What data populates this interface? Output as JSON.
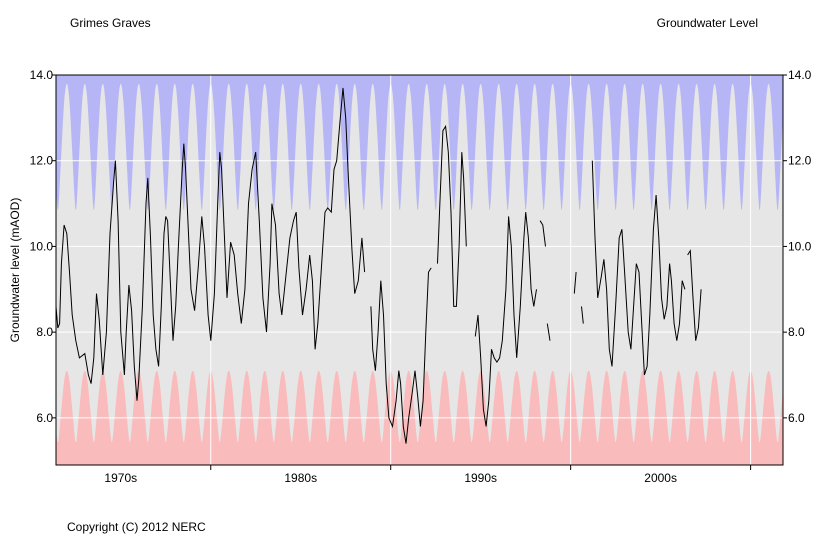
{
  "header": {
    "site_name": "Grimes Graves",
    "chart_title": "Groundwater Level"
  },
  "footer": {
    "copyright": "Copyright (C) 2012 NERC"
  },
  "colors": {
    "plot_background": "#e6e6e6",
    "high_band": "#b3b3f7",
    "low_band": "#fab8b8",
    "gridline": "#ffffff",
    "series_line": "#000000"
  },
  "chart_data": {
    "type": "line",
    "title": "Groundwater Level",
    "xlabel": "",
    "ylabel": "Groundwater level (mAOD)",
    "xlim": [
      1966.4,
      2006.8
    ],
    "ylim": [
      4.9,
      14.0
    ],
    "yticks": [
      6.0,
      8.0,
      10.0,
      12.0,
      14.0
    ],
    "ytick_labels": [
      "6.0",
      "8.0",
      "10.0",
      "12.0",
      "14.0"
    ],
    "xtick_labels": [
      {
        "label": "1970s",
        "center": 1970.0
      },
      {
        "label": "1980s",
        "center": 1980.0
      },
      {
        "label": "1990s",
        "center": 1990.0
      },
      {
        "label": "2000s",
        "center": 2000.0
      }
    ],
    "x_minor_ticks": [
      1975.0,
      1985.0,
      1995.0,
      2005.0
    ],
    "x_major_gridlines": [
      1975.0,
      1985.0,
      1995.0,
      2005.0
    ],
    "seasonal_bands": {
      "high": {
        "base": 14.0,
        "min_level": 10.8,
        "max_level": 13.8
      },
      "low": {
        "base": 4.9,
        "min_level": 5.4,
        "max_level": 7.1
      }
    },
    "series": [
      {
        "name": "Groundwater level",
        "segments": [
          [
            [
              1966.4,
              8.6
            ],
            [
              1966.5,
              8.1
            ],
            [
              1966.6,
              8.2
            ],
            [
              1966.7,
              9.6
            ],
            [
              1966.85,
              10.5
            ],
            [
              1967.0,
              10.3
            ],
            [
              1967.15,
              9.4
            ],
            [
              1967.3,
              8.4
            ],
            [
              1967.5,
              7.8
            ],
            [
              1967.7,
              7.4
            ],
            [
              1968.0,
              7.5
            ],
            [
              1968.2,
              7.0
            ],
            [
              1968.35,
              6.8
            ],
            [
              1968.5,
              7.4
            ],
            [
              1968.65,
              8.9
            ],
            [
              1968.8,
              8.3
            ],
            [
              1969.0,
              7.0
            ],
            [
              1969.2,
              8.0
            ],
            [
              1969.4,
              10.3
            ],
            [
              1969.6,
              11.5
            ],
            [
              1969.7,
              12.0
            ],
            [
              1969.85,
              10.6
            ],
            [
              1970.0,
              8.0
            ],
            [
              1970.2,
              7.0
            ],
            [
              1970.3,
              8.0
            ],
            [
              1970.45,
              9.1
            ],
            [
              1970.6,
              8.5
            ],
            [
              1970.75,
              7.2
            ],
            [
              1970.9,
              6.4
            ],
            [
              1971.0,
              6.9
            ],
            [
              1971.2,
              8.6
            ],
            [
              1971.4,
              11.0
            ],
            [
              1971.5,
              11.6
            ],
            [
              1971.65,
              10.2
            ],
            [
              1971.8,
              8.4
            ],
            [
              1971.95,
              7.6
            ],
            [
              1972.1,
              7.2
            ],
            [
              1972.25,
              8.6
            ],
            [
              1972.4,
              10.3
            ],
            [
              1972.5,
              10.7
            ],
            [
              1972.6,
              10.6
            ],
            [
              1972.75,
              9.2
            ],
            [
              1972.9,
              7.8
            ],
            [
              1973.05,
              8.6
            ],
            [
              1973.2,
              10.0
            ],
            [
              1973.4,
              11.7
            ],
            [
              1973.5,
              12.4
            ],
            [
              1973.6,
              11.8
            ],
            [
              1973.75,
              10.4
            ],
            [
              1973.9,
              9.0
            ],
            [
              1974.1,
              8.5
            ],
            [
              1974.3,
              9.5
            ],
            [
              1974.5,
              10.7
            ],
            [
              1974.65,
              10.0
            ],
            [
              1974.85,
              8.4
            ],
            [
              1975.0,
              7.8
            ],
            [
              1975.2,
              8.9
            ],
            [
              1975.4,
              11.2
            ],
            [
              1975.5,
              12.2
            ],
            [
              1975.6,
              11.8
            ],
            [
              1975.75,
              10.3
            ],
            [
              1975.9,
              8.8
            ],
            [
              1976.1,
              10.1
            ],
            [
              1976.3,
              9.8
            ],
            [
              1976.5,
              8.9
            ],
            [
              1976.7,
              8.2
            ],
            [
              1976.9,
              9.0
            ],
            [
              1977.1,
              11.0
            ],
            [
              1977.3,
              11.8
            ],
            [
              1977.5,
              12.2
            ],
            [
              1977.7,
              10.6
            ],
            [
              1977.9,
              8.8
            ],
            [
              1978.1,
              8.0
            ],
            [
              1978.3,
              9.6
            ],
            [
              1978.4,
              11.0
            ],
            [
              1978.6,
              10.5
            ],
            [
              1978.8,
              8.9
            ],
            [
              1978.95,
              8.4
            ],
            [
              1979.2,
              9.4
            ],
            [
              1979.4,
              10.2
            ],
            [
              1979.6,
              10.6
            ],
            [
              1979.75,
              10.8
            ],
            [
              1979.9,
              9.5
            ],
            [
              1980.1,
              8.4
            ],
            [
              1980.3,
              9.0
            ],
            [
              1980.5,
              9.8
            ],
            [
              1980.65,
              9.2
            ],
            [
              1980.8,
              7.6
            ],
            [
              1980.95,
              8.2
            ],
            [
              1981.15,
              9.5
            ],
            [
              1981.35,
              10.8
            ],
            [
              1981.5,
              10.9
            ],
            [
              1981.7,
              10.8
            ],
            [
              1981.85,
              11.8
            ],
            [
              1982.0,
              12.0
            ],
            [
              1982.2,
              13.0
            ],
            [
              1982.35,
              13.7
            ],
            [
              1982.5,
              13.0
            ],
            [
              1982.65,
              11.6
            ],
            [
              1982.85,
              9.9
            ],
            [
              1983.0,
              8.9
            ],
            [
              1983.2,
              9.2
            ],
            [
              1983.4,
              10.2
            ],
            [
              1983.55,
              9.4
            ]
          ],
          [
            [
              1983.9,
              8.6
            ],
            [
              1984.0,
              7.6
            ],
            [
              1984.15,
              7.1
            ],
            [
              1984.3,
              8.0
            ],
            [
              1984.45,
              9.2
            ],
            [
              1984.6,
              8.4
            ],
            [
              1984.75,
              6.8
            ],
            [
              1984.9,
              6.0
            ],
            [
              1985.1,
              5.8
            ],
            [
              1985.3,
              6.4
            ],
            [
              1985.45,
              7.1
            ],
            [
              1985.55,
              6.8
            ],
            [
              1985.7,
              5.8
            ],
            [
              1985.85,
              5.4
            ],
            [
              1986.0,
              6.0
            ],
            [
              1986.2,
              6.6
            ],
            [
              1986.35,
              7.1
            ],
            [
              1986.5,
              6.5
            ],
            [
              1986.65,
              5.8
            ],
            [
              1986.8,
              6.4
            ],
            [
              1986.95,
              8.0
            ],
            [
              1987.1,
              9.4
            ],
            [
              1987.25,
              9.5
            ]
          ],
          [
            [
              1987.6,
              9.6
            ],
            [
              1987.75,
              11.2
            ],
            [
              1987.9,
              12.7
            ],
            [
              1988.05,
              12.8
            ],
            [
              1988.2,
              12.2
            ],
            [
              1988.35,
              10.8
            ],
            [
              1988.5,
              8.6
            ],
            [
              1988.65,
              8.6
            ],
            [
              1988.8,
              10.0
            ],
            [
              1988.95,
              12.2
            ],
            [
              1989.05,
              11.6
            ],
            [
              1989.2,
              10.0
            ]
          ],
          [
            [
              1989.7,
              7.9
            ],
            [
              1989.85,
              8.4
            ],
            [
              1990.0,
              7.4
            ],
            [
              1990.15,
              6.2
            ],
            [
              1990.3,
              5.8
            ],
            [
              1990.45,
              6.4
            ],
            [
              1990.6,
              7.6
            ],
            [
              1990.75,
              7.4
            ],
            [
              1990.9,
              7.3
            ],
            [
              1991.05,
              7.4
            ],
            [
              1991.2,
              7.8
            ],
            [
              1991.4,
              9.0
            ],
            [
              1991.55,
              10.7
            ],
            [
              1991.7,
              10.0
            ],
            [
              1991.85,
              8.4
            ],
            [
              1992.0,
              7.4
            ],
            [
              1992.2,
              8.6
            ],
            [
              1992.4,
              10.2
            ],
            [
              1992.5,
              10.8
            ],
            [
              1992.65,
              10.2
            ],
            [
              1992.8,
              9.0
            ],
            [
              1992.95,
              8.6
            ],
            [
              1993.1,
              9.0
            ]
          ],
          [
            [
              1993.3,
              10.6
            ],
            [
              1993.45,
              10.5
            ],
            [
              1993.6,
              10.0
            ]
          ],
          [
            [
              1993.7,
              8.2
            ],
            [
              1993.85,
              7.8
            ]
          ],
          [
            [
              1995.2,
              8.9
            ],
            [
              1995.3,
              9.4
            ]
          ],
          [
            [
              1995.6,
              8.6
            ],
            [
              1995.7,
              8.2
            ]
          ],
          [
            [
              1996.2,
              12.0
            ],
            [
              1996.35,
              10.2
            ],
            [
              1996.5,
              8.8
            ],
            [
              1996.7,
              9.3
            ],
            [
              1996.85,
              9.7
            ],
            [
              1997.0,
              9.0
            ],
            [
              1997.15,
              7.6
            ],
            [
              1997.3,
              7.2
            ],
            [
              1997.5,
              8.6
            ],
            [
              1997.7,
              10.2
            ],
            [
              1997.85,
              10.4
            ],
            [
              1998.0,
              9.4
            ],
            [
              1998.2,
              8.0
            ],
            [
              1998.35,
              7.6
            ],
            [
              1998.5,
              8.6
            ],
            [
              1998.65,
              9.6
            ],
            [
              1998.8,
              9.4
            ],
            [
              1998.95,
              8.2
            ],
            [
              1999.1,
              7.0
            ],
            [
              1999.25,
              7.2
            ],
            [
              1999.4,
              8.4
            ],
            [
              1999.6,
              10.4
            ],
            [
              1999.75,
              11.2
            ],
            [
              1999.9,
              10.2
            ],
            [
              2000.05,
              8.8
            ],
            [
              2000.2,
              8.3
            ],
            [
              2000.35,
              8.6
            ],
            [
              2000.5,
              9.6
            ],
            [
              2000.6,
              9.2
            ],
            [
              2000.75,
              8.2
            ],
            [
              2000.9,
              7.8
            ],
            [
              2001.05,
              8.2
            ],
            [
              2001.2,
              9.2
            ],
            [
              2001.35,
              9.0
            ]
          ],
          [
            [
              2001.5,
              9.8
            ],
            [
              2001.65,
              9.9
            ],
            [
              2001.8,
              8.8
            ],
            [
              2001.95,
              7.8
            ],
            [
              2002.1,
              8.1
            ],
            [
              2002.25,
              9.0
            ]
          ]
        ]
      }
    ]
  }
}
